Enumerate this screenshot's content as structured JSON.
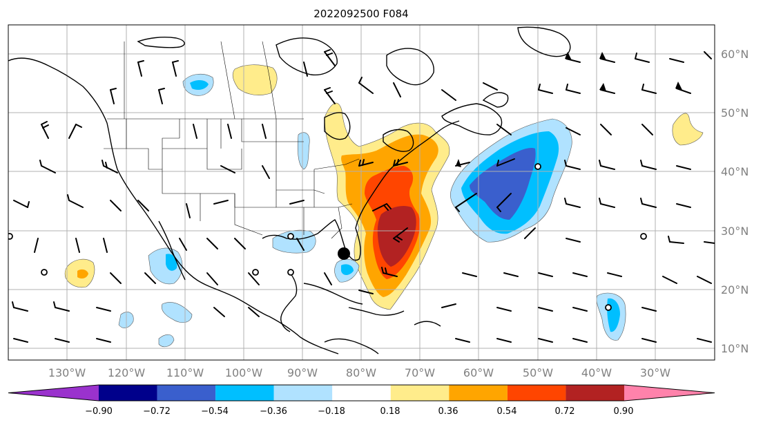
{
  "title": "2022092500 F084",
  "lon_labels": [
    "130°W",
    "120°W",
    "110°W",
    "100°W",
    "90°W",
    "80°W",
    "70°W",
    "60°W",
    "50°W",
    "40°W",
    "30°W"
  ],
  "lat_labels": [
    "60°N",
    "50°N",
    "40°N",
    "30°N",
    "20°N",
    "10°N"
  ],
  "colorbar": {
    "tick_labels": [
      "−0.90",
      "−0.72",
      "−0.54",
      "−0.36",
      "−0.18",
      "0.18",
      "0.36",
      "0.54",
      "0.72",
      "0.90"
    ],
    "colors": [
      "#9a32cd",
      "#00008b",
      "#3a5fcd",
      "#00bfff",
      "#b0e2ff",
      "#ffffff",
      "#ffec8b",
      "#ffa500",
      "#ff4500",
      "#b22222",
      "#ff82ab"
    ]
  },
  "map_style": {
    "grid_color": "#b0b0b0",
    "coast_color": "#000000",
    "label_color": "#808080"
  },
  "center_marker": "storm-center-dot"
}
